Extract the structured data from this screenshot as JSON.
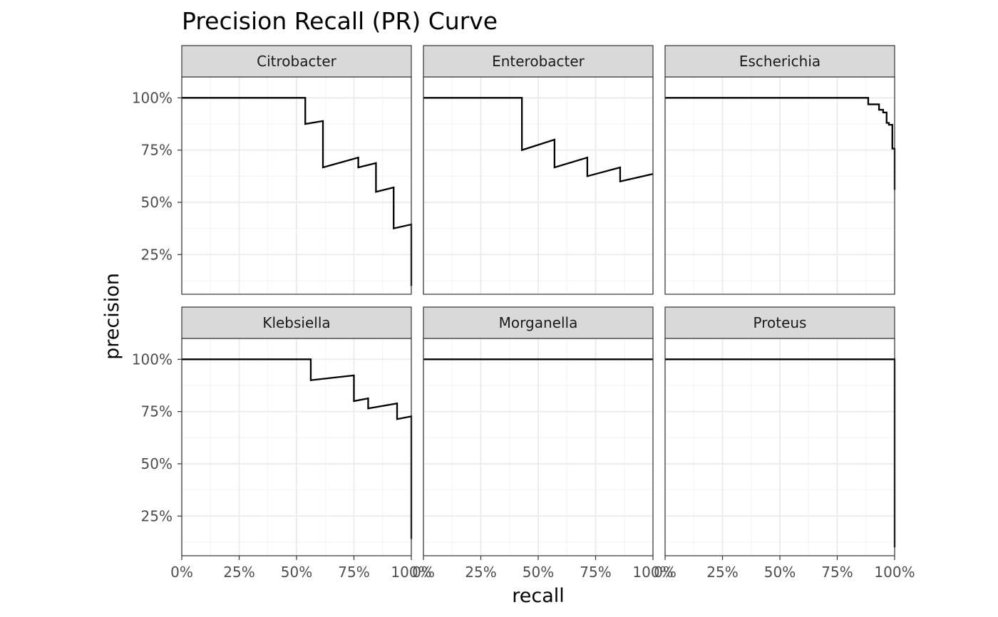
{
  "chart_data": {
    "type": "line",
    "title": "Precision Recall (PR) Curve",
    "xlabel": "recall",
    "ylabel": "precision",
    "xlim": [
      0,
      1
    ],
    "ylim": [
      0.06,
      1.1
    ],
    "x_ticks": [
      0,
      0.25,
      0.5,
      0.75,
      1.0
    ],
    "x_tick_labels": [
      "0%",
      "25%",
      "50%",
      "75%",
      "100%"
    ],
    "y_ticks": [
      0.25,
      0.5,
      0.75,
      1.0
    ],
    "y_tick_labels": [
      "25%",
      "50%",
      "75%",
      "100%"
    ],
    "grid": true,
    "layout": {
      "rows": 2,
      "cols": 3
    },
    "panels": [
      {
        "name": "Citrobacter",
        "points": [
          [
            0,
            1.0
          ],
          [
            0.538,
            1.0
          ],
          [
            0.538,
            0.875
          ],
          [
            0.615,
            0.889
          ],
          [
            0.615,
            0.667
          ],
          [
            0.769,
            0.714
          ],
          [
            0.769,
            0.667
          ],
          [
            0.846,
            0.688
          ],
          [
            0.846,
            0.55
          ],
          [
            0.923,
            0.571
          ],
          [
            0.923,
            0.375
          ],
          [
            1.0,
            0.394
          ],
          [
            1.0,
            0.1
          ]
        ]
      },
      {
        "name": "Enterobacter",
        "points": [
          [
            0,
            1.0
          ],
          [
            0.429,
            1.0
          ],
          [
            0.429,
            0.75
          ],
          [
            0.571,
            0.8
          ],
          [
            0.571,
            0.667
          ],
          [
            0.714,
            0.714
          ],
          [
            0.714,
            0.625
          ],
          [
            0.857,
            0.667
          ],
          [
            0.857,
            0.6
          ],
          [
            1.0,
            0.636
          ]
        ]
      },
      {
        "name": "Escherichia",
        "points": [
          [
            0,
            1.0
          ],
          [
            0.885,
            1.0
          ],
          [
            0.885,
            0.969
          ],
          [
            0.932,
            0.969
          ],
          [
            0.932,
            0.943
          ],
          [
            0.95,
            0.943
          ],
          [
            0.95,
            0.93
          ],
          [
            0.965,
            0.93
          ],
          [
            0.965,
            0.88
          ],
          [
            0.975,
            0.88
          ],
          [
            0.975,
            0.871
          ],
          [
            0.99,
            0.871
          ],
          [
            0.99,
            0.757
          ],
          [
            1.0,
            0.757
          ],
          [
            1.0,
            0.56
          ]
        ]
      },
      {
        "name": "Klebsiella",
        "points": [
          [
            0,
            1.0
          ],
          [
            0.562,
            1.0
          ],
          [
            0.562,
            0.9
          ],
          [
            0.75,
            0.923
          ],
          [
            0.75,
            0.8
          ],
          [
            0.812,
            0.813
          ],
          [
            0.812,
            0.765
          ],
          [
            0.938,
            0.789
          ],
          [
            0.938,
            0.714
          ],
          [
            1.0,
            0.727
          ],
          [
            1.0,
            0.14
          ]
        ]
      },
      {
        "name": "Morganella",
        "points": [
          [
            0,
            1.0
          ],
          [
            1.0,
            1.0
          ]
        ]
      },
      {
        "name": "Proteus",
        "points": [
          [
            0,
            1.0
          ],
          [
            1.0,
            1.0
          ],
          [
            1.0,
            0.1
          ]
        ]
      }
    ]
  }
}
